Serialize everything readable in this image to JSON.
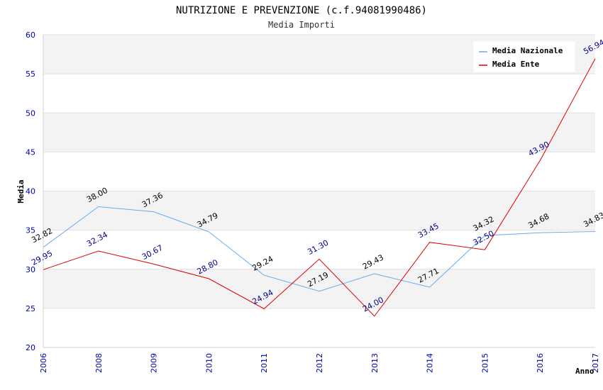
{
  "chart_data": {
    "type": "line",
    "title": "NUTRIZIONE E PREVENZIONE (c.f.94081990486)",
    "subtitle": "Media Importi",
    "xlabel": "Anno",
    "ylabel": "Media",
    "ylim": [
      20,
      60
    ],
    "yticks": [
      "20",
      "25",
      "30",
      "35",
      "40",
      "45",
      "50",
      "55",
      "60"
    ],
    "categories": [
      "2006",
      "2008",
      "2009",
      "2010",
      "2011",
      "2012",
      "2013",
      "2014",
      "2015",
      "2016",
      "2017"
    ],
    "series": [
      {
        "name": "Media Nazionale",
        "color": "#66aaee",
        "label_color": "#000000",
        "values": [
          32.82,
          38.0,
          37.36,
          34.79,
          29.24,
          27.19,
          29.43,
          27.71,
          34.32,
          34.68,
          34.83
        ],
        "labels": [
          "32.82",
          "38.00",
          "37.36",
          "34.79",
          "29.24",
          "27.19",
          "29.43",
          "27.71",
          "34.32",
          "34.68",
          "34.83"
        ]
      },
      {
        "name": "Media Ente",
        "color": "#dd0000",
        "label_color": "#000088",
        "values": [
          29.95,
          32.34,
          30.67,
          28.8,
          24.94,
          31.3,
          24.0,
          33.45,
          32.5,
          43.9,
          56.94
        ],
        "labels": [
          "29.95",
          "32.34",
          "30.67",
          "28.80",
          "24.94",
          "31.30",
          "24.00",
          "33.45",
          "32.50",
          "43.90",
          "56.94"
        ]
      }
    ],
    "grid": true,
    "band_color": "#f3f3f3",
    "legend_position": "top-right"
  }
}
